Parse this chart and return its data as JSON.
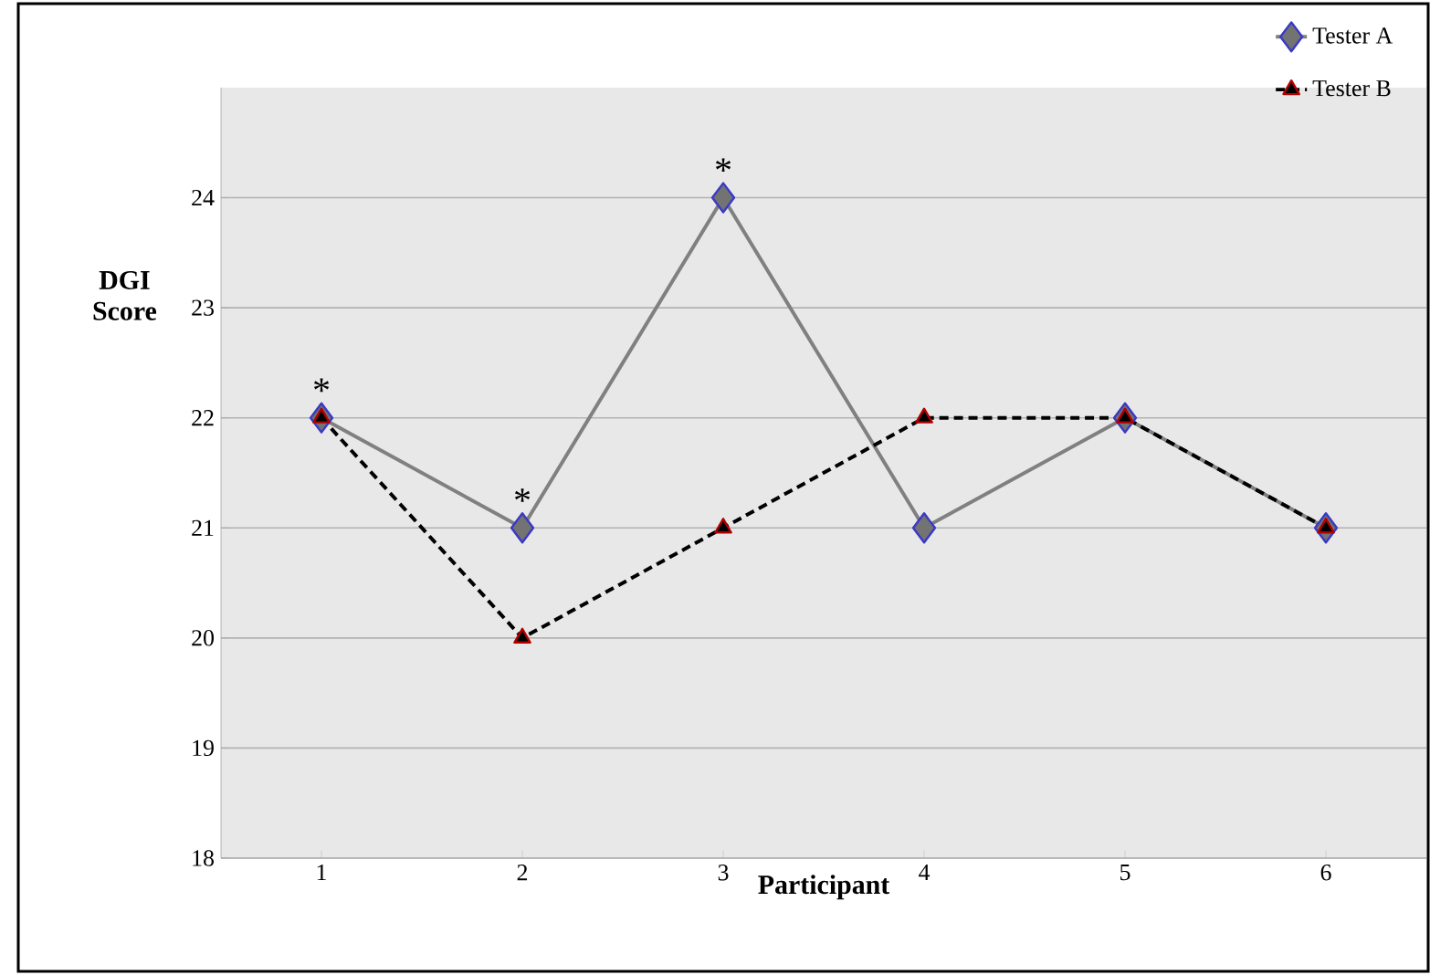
{
  "chart_data": {
    "type": "line",
    "xlabel": "Participant",
    "ylabel": "DGI Score",
    "categories": [
      "1",
      "2",
      "3",
      "4",
      "5",
      "6"
    ],
    "series": [
      {
        "name": "Tester A",
        "color": "#808080",
        "values": [
          22,
          21,
          24,
          21,
          22,
          21
        ],
        "marker": "diamond",
        "line_style": "solid"
      },
      {
        "name": "Tester B",
        "color": "#000000",
        "values": [
          22,
          20,
          21,
          22,
          22,
          21
        ],
        "marker": "triangle",
        "line_style": "dashed"
      }
    ],
    "ylim": [
      18,
      25
    ],
    "yticks": [
      18,
      19,
      20,
      21,
      22,
      23,
      24
    ],
    "grid": "y",
    "legend": "top right",
    "annotations": [
      {
        "text": "*",
        "x": "1",
        "y": 22
      },
      {
        "text": "*",
        "x": "2",
        "y": 21
      },
      {
        "text": "*",
        "x": "3",
        "y": 24
      }
    ]
  }
}
